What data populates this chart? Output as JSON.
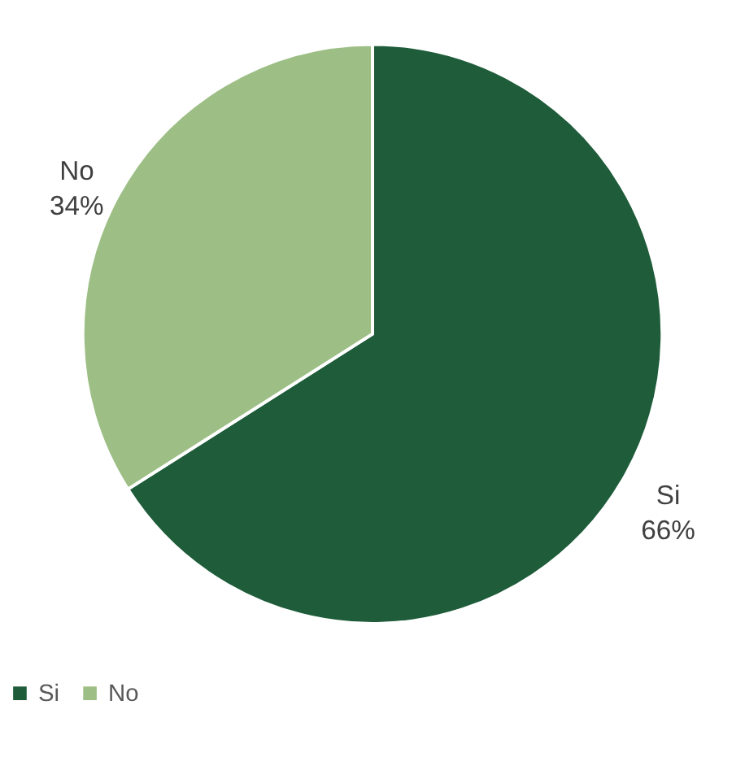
{
  "chart_data": {
    "type": "pie",
    "categories": [
      "Si",
      "No"
    ],
    "values": [
      66,
      34
    ],
    "colors": [
      "#1e5c3a",
      "#9dbf86"
    ],
    "value_labels": [
      "66%",
      "34%"
    ],
    "legend": "bottom"
  }
}
